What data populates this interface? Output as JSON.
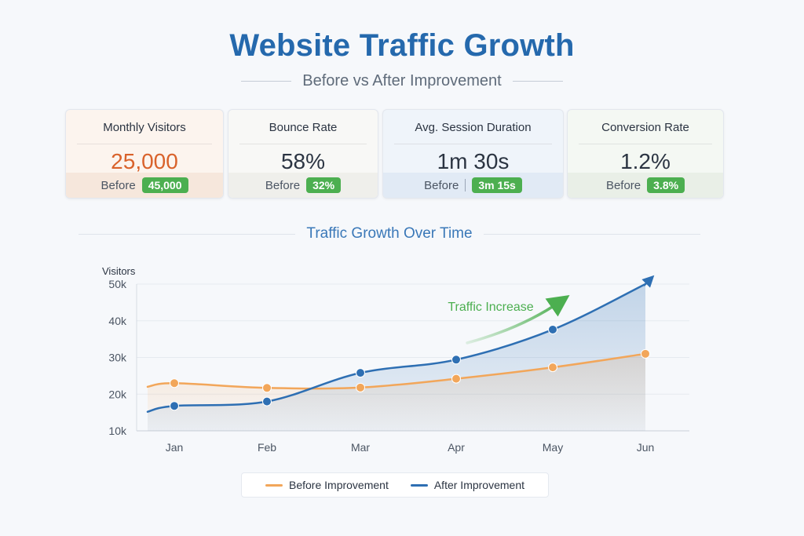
{
  "page": {
    "title": "Website Traffic Growth",
    "subtitle": "Before vs After Improvement",
    "section_title": "Traffic Growth Over Time"
  },
  "cards": [
    {
      "label": "Monthly Visitors",
      "value": "25,000",
      "before_label": "Before",
      "before_value": "45,000"
    },
    {
      "label": "Bounce Rate",
      "value": "58%",
      "before_label": "Before",
      "before_value": "32%"
    },
    {
      "label": "Avg. Session Duration",
      "value": "1m 30s",
      "before_label": "Before",
      "before_value": "3m 15s"
    },
    {
      "label": "Conversion Rate",
      "value": "1.2%",
      "before_label": "Before",
      "before_value": "3.8%"
    }
  ],
  "colors": {
    "before": "#f2a65a",
    "after": "#2e6fb3",
    "accent_orange": "#d9622b",
    "badge_green": "#4caf50",
    "annotation_green": "#4caf50"
  },
  "chart_data": {
    "type": "line",
    "title": "Traffic Growth Over Time",
    "ylabel": "Visitors",
    "xlabel": "",
    "categories": [
      "Jan",
      "Feb",
      "Mar",
      "Apr",
      "May",
      "Jun"
    ],
    "ylim": [
      10000,
      50000
    ],
    "y_ticks": [
      10000,
      20000,
      30000,
      40000,
      50000
    ],
    "y_tick_labels": [
      "10k",
      "20k",
      "30k",
      "40k",
      "50k"
    ],
    "grid": true,
    "legend_position": "bottom",
    "series": [
      {
        "name": "Before Improvement",
        "values": [
          23000,
          21700,
          21800,
          24200,
          27300,
          31000
        ]
      },
      {
        "name": "After Improvement",
        "values": [
          16800,
          18000,
          25800,
          29400,
          37600,
          50000
        ]
      }
    ],
    "annotations": [
      {
        "text": "Traffic Increase",
        "from_category": "Apr",
        "to_category": "May"
      }
    ]
  }
}
